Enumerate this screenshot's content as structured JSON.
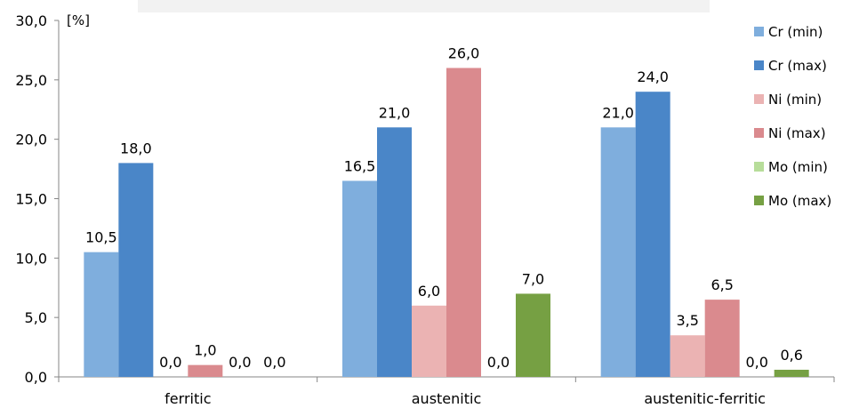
{
  "chart_data": {
    "type": "bar",
    "categories": [
      "ferritic",
      "austenitic",
      "austenitic-ferritic"
    ],
    "series": [
      {
        "name": "Cr (min)",
        "color": "#7faedd",
        "values": [
          10.5,
          16.5,
          21.0
        ],
        "labels": [
          "10,5",
          "16,5",
          "21,0"
        ]
      },
      {
        "name": "Cr (max)",
        "color": "#4a86c8",
        "values": [
          18.0,
          21.0,
          24.0
        ],
        "labels": [
          "18,0",
          "21,0",
          "24,0"
        ]
      },
      {
        "name": "Ni (min)",
        "color": "#ebb3b3",
        "values": [
          0.0,
          6.0,
          3.5
        ],
        "labels": [
          "0,0",
          "6,0",
          "3,5"
        ]
      },
      {
        "name": "Ni (max)",
        "color": "#da8a8e",
        "values": [
          1.0,
          26.0,
          6.5
        ],
        "labels": [
          "1,0",
          "26,0",
          "6,5"
        ]
      },
      {
        "name": "Mo (min)",
        "color": "#b7dd9a",
        "values": [
          0.0,
          0.0,
          0.0
        ],
        "labels": [
          "0,0",
          "0,0",
          "0,0"
        ]
      },
      {
        "name": "Mo (max)",
        "color": "#76a043",
        "values": [
          0.0,
          7.0,
          0.6
        ],
        "labels": [
          "0,0",
          "7,0",
          "0,6"
        ]
      }
    ],
    "ylabel": "[%]",
    "ylim": [
      0,
      30
    ],
    "yticks": [
      0,
      5,
      10,
      15,
      20,
      25,
      30
    ],
    "ytick_labels": [
      "0,0",
      "5,0",
      "10,0",
      "15,0",
      "20,0",
      "25,0",
      "30,0"
    ],
    "grid": false,
    "legend_position": "right"
  }
}
